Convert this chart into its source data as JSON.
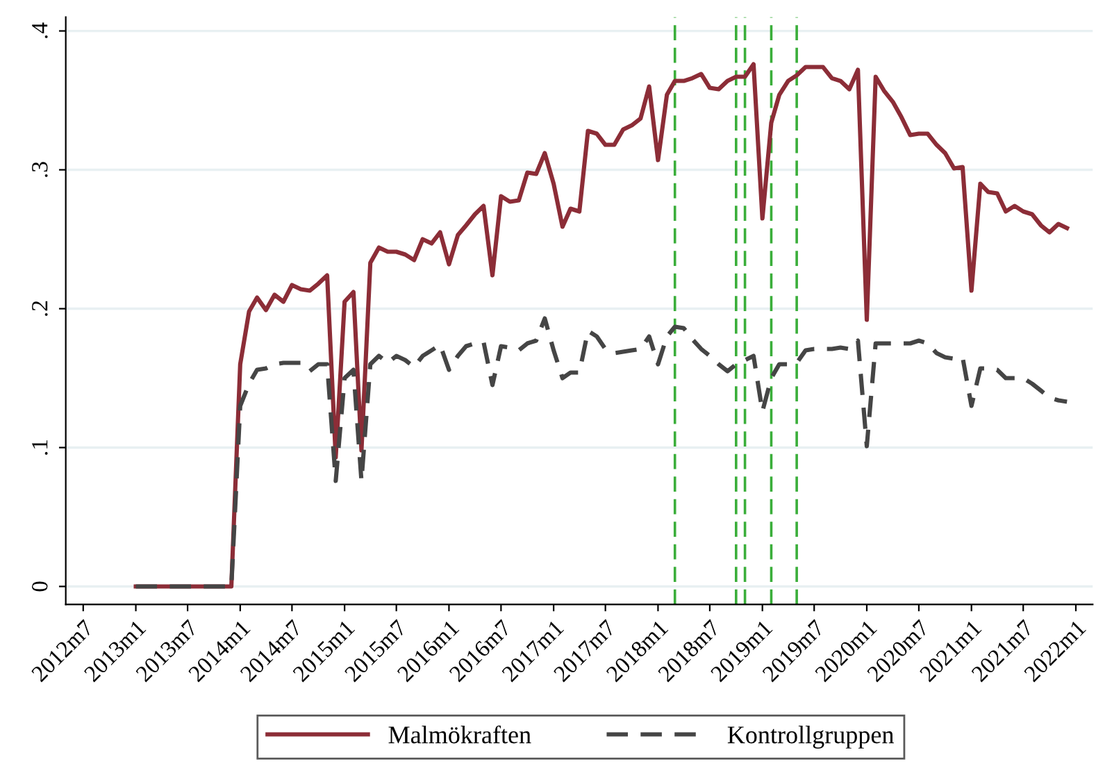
{
  "chart_data": {
    "type": "line",
    "x": [
      "2013-01",
      "2013-02",
      "2013-03",
      "2013-04",
      "2013-05",
      "2013-06",
      "2013-07",
      "2013-08",
      "2013-09",
      "2013-10",
      "2013-11",
      "2013-12",
      "2014-01",
      "2014-02",
      "2014-03",
      "2014-04",
      "2014-05",
      "2014-06",
      "2014-07",
      "2014-08",
      "2014-09",
      "2014-10",
      "2014-11",
      "2014-12",
      "2015-01",
      "2015-02",
      "2015-03",
      "2015-04",
      "2015-05",
      "2015-06",
      "2015-07",
      "2015-08",
      "2015-09",
      "2015-10",
      "2015-11",
      "2015-12",
      "2016-01",
      "2016-02",
      "2016-03",
      "2016-04",
      "2016-05",
      "2016-06",
      "2016-07",
      "2016-08",
      "2016-09",
      "2016-10",
      "2016-11",
      "2016-12",
      "2017-01",
      "2017-02",
      "2017-03",
      "2017-04",
      "2017-05",
      "2017-06",
      "2017-07",
      "2017-08",
      "2017-09",
      "2017-10",
      "2017-11",
      "2017-12",
      "2018-01",
      "2018-02",
      "2018-03",
      "2018-04",
      "2018-05",
      "2018-06",
      "2018-07",
      "2018-08",
      "2018-09",
      "2018-10",
      "2018-11",
      "2018-12",
      "2019-01",
      "2019-02",
      "2019-03",
      "2019-04",
      "2019-05",
      "2019-06",
      "2019-07",
      "2019-08",
      "2019-09",
      "2019-10",
      "2019-11",
      "2019-12",
      "2020-01",
      "2020-02",
      "2020-03",
      "2020-04",
      "2020-05",
      "2020-06",
      "2020-07",
      "2020-08",
      "2020-09",
      "2020-10",
      "2020-11",
      "2020-12",
      "2021-01",
      "2021-02",
      "2021-03",
      "2021-04",
      "2021-05",
      "2021-06",
      "2021-07",
      "2021-08",
      "2021-09",
      "2021-10",
      "2021-11",
      "2021-12"
    ],
    "series": [
      {
        "name": "Malmökraften",
        "color": "#8c2d37",
        "line_style": "solid",
        "values": [
          0,
          0,
          0,
          0,
          0,
          0,
          0,
          0,
          0,
          0,
          0,
          0,
          0.16,
          0.198,
          0.208,
          0.199,
          0.21,
          0.205,
          0.217,
          0.214,
          0.213,
          0.218,
          0.224,
          0.093,
          0.205,
          0.212,
          0.098,
          0.233,
          0.244,
          0.241,
          0.241,
          0.239,
          0.235,
          0.25,
          0.247,
          0.255,
          0.232,
          0.253,
          0.26,
          0.268,
          0.274,
          0.224,
          0.281,
          0.277,
          0.278,
          0.298,
          0.297,
          0.312,
          0.29,
          0.259,
          0.272,
          0.27,
          0.328,
          0.326,
          0.318,
          0.318,
          0.329,
          0.332,
          0.337,
          0.36,
          0.307,
          0.354,
          0.364,
          0.364,
          0.366,
          0.369,
          0.359,
          0.358,
          0.364,
          0.367,
          0.367,
          0.376,
          0.265,
          0.334,
          0.354,
          0.364,
          0.368,
          0.374,
          0.374,
          0.374,
          0.366,
          0.364,
          0.358,
          0.372,
          0.192,
          0.367,
          0.357,
          0.349,
          0.338,
          0.325,
          0.326,
          0.326,
          0.318,
          0.312,
          0.301,
          0.302,
          0.213,
          0.29,
          0.284,
          0.283,
          0.27,
          0.274,
          0.27,
          0.268,
          0.26,
          0.255,
          0.261,
          0.258
        ]
      },
      {
        "name": "Kontrollgruppen",
        "color": "#454545",
        "line_style": "dashed",
        "values": [
          0,
          0,
          0,
          0,
          0,
          0,
          0,
          0,
          0,
          0,
          0,
          0,
          0.13,
          0.146,
          0.156,
          0.157,
          0.16,
          0.161,
          0.161,
          0.161,
          0.155,
          0.16,
          0.16,
          0.076,
          0.15,
          0.156,
          0.076,
          0.16,
          0.166,
          0.161,
          0.166,
          0.163,
          0.158,
          0.166,
          0.17,
          0.174,
          0.156,
          0.166,
          0.173,
          0.175,
          0.176,
          0.145,
          0.173,
          0.172,
          0.17,
          0.175,
          0.177,
          0.193,
          0.17,
          0.15,
          0.154,
          0.154,
          0.184,
          0.18,
          0.171,
          0.168,
          0.169,
          0.17,
          0.171,
          0.18,
          0.16,
          0.18,
          0.187,
          0.186,
          0.178,
          0.171,
          0.166,
          0.16,
          0.155,
          0.16,
          0.163,
          0.166,
          0.126,
          0.15,
          0.16,
          0.16,
          0.161,
          0.17,
          0.171,
          0.171,
          0.171,
          0.172,
          0.171,
          0.177,
          0.101,
          0.175,
          0.175,
          0.175,
          0.175,
          0.175,
          0.177,
          0.175,
          0.168,
          0.165,
          0.164,
          0.165,
          0.13,
          0.157,
          0.157,
          0.156,
          0.15,
          0.15,
          0.15,
          0.146,
          0.141,
          0.136,
          0.134,
          0.133
        ]
      }
    ],
    "xlim": [
      "2012-05",
      "2022-03"
    ],
    "xticks": [
      {
        "value": "2012-07",
        "label": "2012m7"
      },
      {
        "value": "2013-01",
        "label": "2013m1"
      },
      {
        "value": "2013-07",
        "label": "2013m7"
      },
      {
        "value": "2014-01",
        "label": "2014m1"
      },
      {
        "value": "2014-07",
        "label": "2014m7"
      },
      {
        "value": "2015-01",
        "label": "2015m1"
      },
      {
        "value": "2015-07",
        "label": "2015m7"
      },
      {
        "value": "2016-01",
        "label": "2016m1"
      },
      {
        "value": "2016-07",
        "label": "2016m7"
      },
      {
        "value": "2017-01",
        "label": "2017m1"
      },
      {
        "value": "2017-07",
        "label": "2017m7"
      },
      {
        "value": "2018-01",
        "label": "2018m1"
      },
      {
        "value": "2018-07",
        "label": "2018m7"
      },
      {
        "value": "2019-01",
        "label": "2019m1"
      },
      {
        "value": "2019-07",
        "label": "2019m7"
      },
      {
        "value": "2020-01",
        "label": "2020m1"
      },
      {
        "value": "2020-07",
        "label": "2020m7"
      },
      {
        "value": "2021-01",
        "label": "2021m1"
      },
      {
        "value": "2021-07",
        "label": "2021m7"
      },
      {
        "value": "2022-01",
        "label": "2022m1"
      }
    ],
    "ylim": [
      -0.013,
      0.41
    ],
    "yticks": [
      {
        "value": 0,
        "label": "0"
      },
      {
        "value": 0.1,
        "label": ".1"
      },
      {
        "value": 0.2,
        "label": ".2"
      },
      {
        "value": 0.3,
        "label": ".3"
      },
      {
        "value": 0.4,
        "label": ".4"
      }
    ],
    "ref_lines": [
      {
        "axis": "x",
        "value": "2018-03",
        "color": "#3aae3a",
        "line_style": "dashed"
      },
      {
        "axis": "x",
        "value": "2018-10",
        "color": "#3aae3a",
        "line_style": "dashed"
      },
      {
        "axis": "x",
        "value": "2018-11",
        "color": "#3aae3a",
        "line_style": "dashed"
      },
      {
        "axis": "x",
        "value": "2019-02",
        "color": "#3aae3a",
        "line_style": "dashed"
      },
      {
        "axis": "x",
        "value": "2019-05",
        "color": "#3aae3a",
        "line_style": "dashed"
      }
    ],
    "grid": "y",
    "legend": "bottom",
    "marker": "none"
  }
}
